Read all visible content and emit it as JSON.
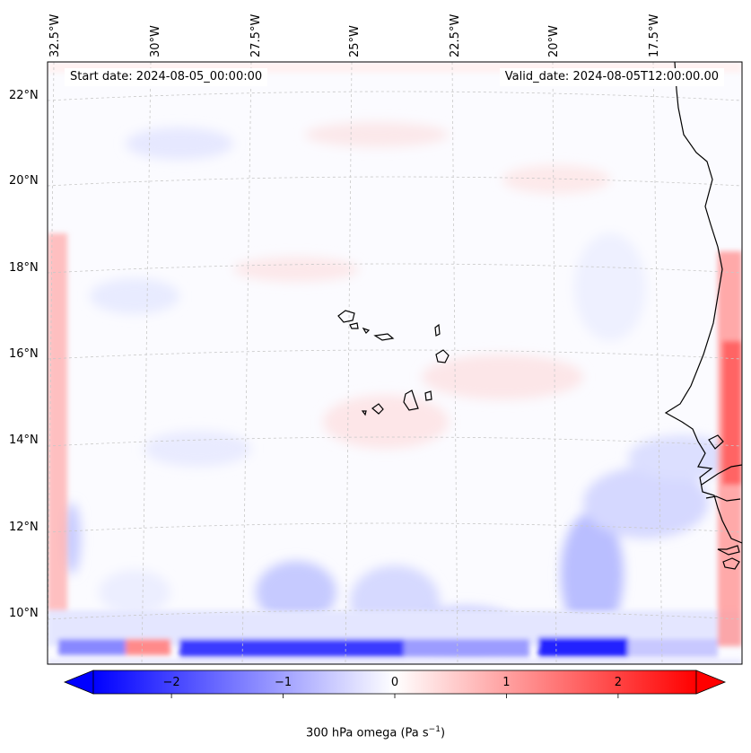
{
  "map": {
    "start_date_label": "Start date: 2024-08-05_00:00:00",
    "valid_date_label": "Valid_date: 2024-08-05T12:00:00.00",
    "lon_labels": [
      "32.5°W",
      "30°W",
      "27.5°W",
      "25°W",
      "22.5°W",
      "20°W",
      "17.5°W"
    ],
    "lat_labels": [
      "22°N",
      "20°N",
      "18°N",
      "16°N",
      "14°N",
      "12°N",
      "10°N"
    ]
  },
  "colorbar": {
    "label": "300 hPa omega (Pa s",
    "label_sup": "−1",
    "label_close": ")",
    "range": [
      -2.7,
      2.7
    ],
    "ticks": [
      "−2",
      "−1",
      "0",
      "1",
      "2"
    ],
    "tick_values": [
      -2,
      -1,
      0,
      1,
      2
    ],
    "colors": {
      "low": "#0000ff",
      "mid": "#ffffff",
      "high": "#ff0000"
    }
  }
}
